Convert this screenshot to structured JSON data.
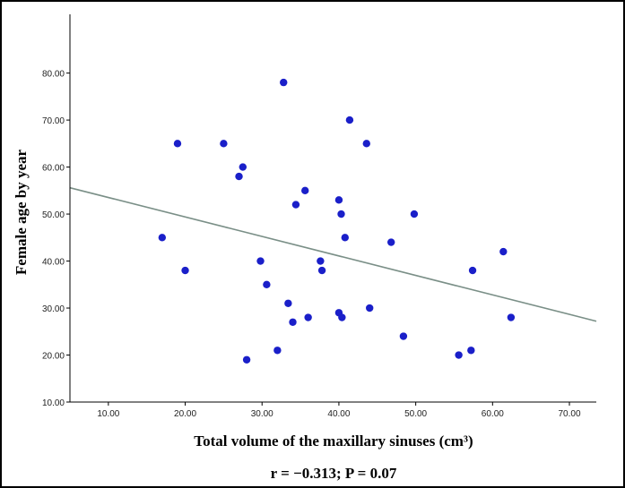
{
  "chart_data": {
    "type": "scatter",
    "title": "",
    "xlabel": "Total volume of the maxillary sinuses (cm³)",
    "ylabel": "Female age by year",
    "xlim": [
      5,
      73.5
    ],
    "ylim": [
      10,
      92.5
    ],
    "xticks": [
      "10.00",
      "20.00",
      "30.00",
      "40.00",
      "50.00",
      "60.00",
      "70.00"
    ],
    "yticks": [
      "10.00",
      "20.00",
      "30.00",
      "40.00",
      "50.00",
      "60.00",
      "70.00",
      "80.00"
    ],
    "grid": false,
    "points": [
      {
        "x": 17.0,
        "y": 45
      },
      {
        "x": 19.0,
        "y": 65
      },
      {
        "x": 20.0,
        "y": 38
      },
      {
        "x": 25.0,
        "y": 65
      },
      {
        "x": 27.0,
        "y": 58
      },
      {
        "x": 27.5,
        "y": 60
      },
      {
        "x": 28.0,
        "y": 19
      },
      {
        "x": 29.8,
        "y": 40
      },
      {
        "x": 30.6,
        "y": 35
      },
      {
        "x": 32.0,
        "y": 21
      },
      {
        "x": 32.8,
        "y": 78
      },
      {
        "x": 33.4,
        "y": 31
      },
      {
        "x": 34.0,
        "y": 27
      },
      {
        "x": 34.4,
        "y": 52
      },
      {
        "x": 35.6,
        "y": 55
      },
      {
        "x": 36.0,
        "y": 28
      },
      {
        "x": 37.6,
        "y": 40
      },
      {
        "x": 37.8,
        "y": 38
      },
      {
        "x": 40.0,
        "y": 53
      },
      {
        "x": 40.0,
        "y": 29
      },
      {
        "x": 40.3,
        "y": 50
      },
      {
        "x": 40.4,
        "y": 28
      },
      {
        "x": 40.8,
        "y": 45
      },
      {
        "x": 41.4,
        "y": 70
      },
      {
        "x": 43.6,
        "y": 65
      },
      {
        "x": 44.0,
        "y": 30
      },
      {
        "x": 46.8,
        "y": 44
      },
      {
        "x": 48.4,
        "y": 24
      },
      {
        "x": 49.8,
        "y": 50
      },
      {
        "x": 55.6,
        "y": 20
      },
      {
        "x": 57.2,
        "y": 21
      },
      {
        "x": 57.4,
        "y": 38
      },
      {
        "x": 61.4,
        "y": 42
      },
      {
        "x": 62.4,
        "y": 28
      }
    ],
    "regression_line": {
      "x": [
        5,
        73.5
      ],
      "y": [
        55.6,
        27.2
      ]
    },
    "annotation": "r = −0.313;  P = 0.07",
    "colors": {
      "points": "#1a1fc9",
      "line": "#7a8f87",
      "axis": "#000000"
    }
  }
}
